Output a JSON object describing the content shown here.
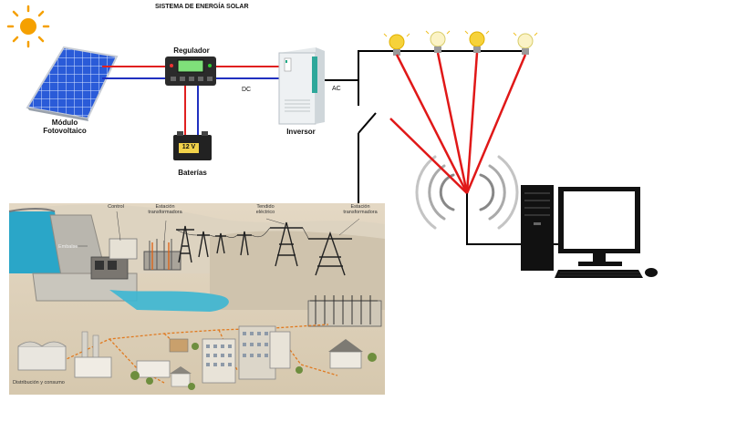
{
  "title": "SISTEMA DE ENERGÍA SOLAR",
  "solar_system": {
    "panel_label_line1": "Módulo",
    "panel_label_line2": "Fotovoltaico",
    "regulator_label": "Regulador",
    "battery_label": "Baterías",
    "battery_voltage": "12 V",
    "inverter_label": "Inversor",
    "dc_label": "DC",
    "ac_label": "AC"
  },
  "grid_illustration": {
    "control_label": "Control",
    "substation_label_1": "Estación transformadora",
    "wiring_label": "Tendido eléctrico",
    "substation_label_2": "Estación transformadora",
    "dam_label": "Embalse",
    "distribution_label": "Distribución y consumo"
  },
  "colors": {
    "wire_positive": "#e02020",
    "wire_negative": "#2030c0",
    "wire_black": "#000000",
    "beam": "#e01818",
    "bulb": "#f6d23a",
    "sun": "#f5a000",
    "panel_blue": "#2a5bd8"
  },
  "icons": [
    "sun-icon",
    "solar-panel-icon",
    "charge-regulator-icon",
    "battery-icon",
    "inverter-icon",
    "light-bulb-icon",
    "wifi-signal-icon",
    "desktop-computer-icon"
  ]
}
